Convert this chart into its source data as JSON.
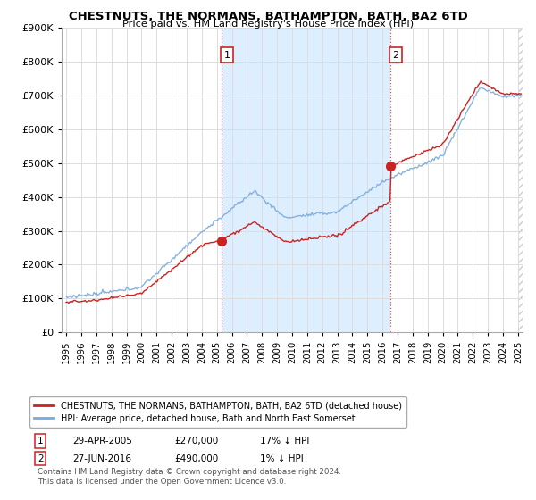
{
  "title": "CHESTNUTS, THE NORMANS, BATHAMPTON, BATH, BA2 6TD",
  "subtitle": "Price paid vs. HM Land Registry's House Price Index (HPI)",
  "ylim": [
    0,
    900000
  ],
  "yticks": [
    0,
    100000,
    200000,
    300000,
    400000,
    500000,
    600000,
    700000,
    800000,
    900000
  ],
  "xlim_start": 1994.7,
  "xlim_end": 2025.3,
  "background_color": "#ffffff",
  "plot_bg_color": "#ffffff",
  "owned_shading_color": "#ddeeff",
  "grid_color": "#dddddd",
  "hpi_color": "#7aaadd",
  "price_color": "#cc2222",
  "marker1_x": 2005.32,
  "marker1_y": 270000,
  "marker2_x": 2016.5,
  "marker2_y": 490000,
  "marker1_label": "1",
  "marker2_label": "2",
  "legend_red": "CHESTNUTS, THE NORMANS, BATHAMPTON, BATH, BA2 6TD (detached house)",
  "legend_blue": "HPI: Average price, detached house, Bath and North East Somerset",
  "footnote": "Contains HM Land Registry data © Crown copyright and database right 2024.\nThis data is licensed under the Open Government Licence v3.0.",
  "xtick_years": [
    1995,
    1996,
    1997,
    1998,
    1999,
    2000,
    2001,
    2002,
    2003,
    2004,
    2005,
    2006,
    2007,
    2008,
    2009,
    2010,
    2011,
    2012,
    2013,
    2014,
    2015,
    2016,
    2017,
    2018,
    2019,
    2020,
    2021,
    2022,
    2023,
    2024,
    2025
  ],
  "ann1_date": "29-APR-2005",
  "ann1_price": "£270,000",
  "ann1_hpi": "17% ↓ HPI",
  "ann2_date": "27-JUN-2016",
  "ann2_price": "£490,000",
  "ann2_hpi": "1% ↓ HPI"
}
